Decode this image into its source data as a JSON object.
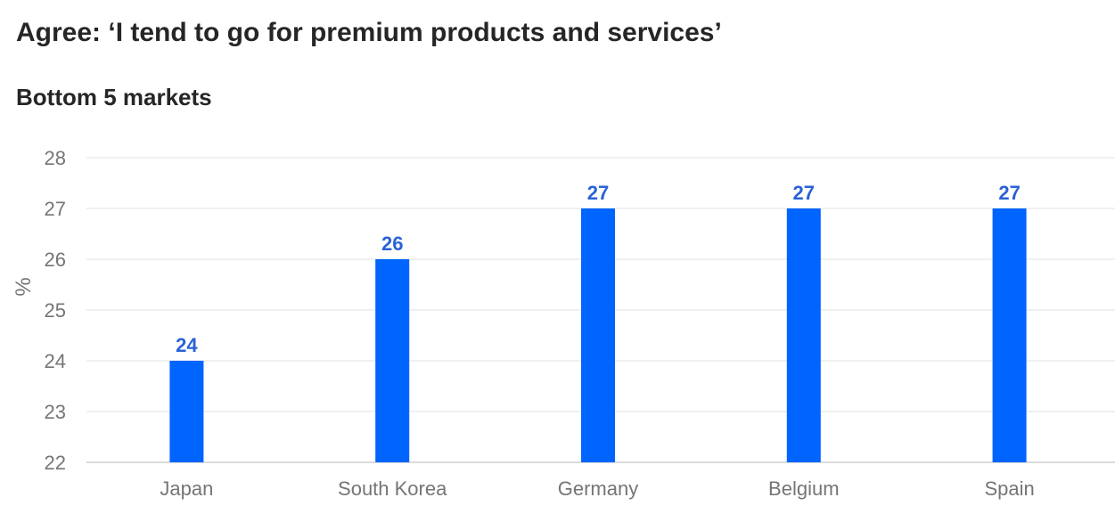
{
  "title": "Agree: ‘I tend to go for premium products and services’",
  "subtitle": "Bottom 5 markets",
  "colors": {
    "bar": "#0064FF",
    "data_label": "#2A62D6",
    "grid": "#E0E0E0",
    "axis_text": "#757575",
    "title_text": "#262626"
  },
  "chart_data": {
    "type": "bar",
    "categories": [
      "Japan",
      "South Korea",
      "Germany",
      "Belgium",
      "Spain"
    ],
    "values": [
      24,
      26,
      27,
      27,
      27
    ],
    "data_labels": [
      "24",
      "26",
      "27",
      "27",
      "27"
    ],
    "ylabel": "%",
    "xlabel": "",
    "ylim": [
      22,
      28
    ],
    "yticks": [
      22,
      23,
      24,
      25,
      26,
      27,
      28
    ],
    "grid": true,
    "legend": "none"
  }
}
